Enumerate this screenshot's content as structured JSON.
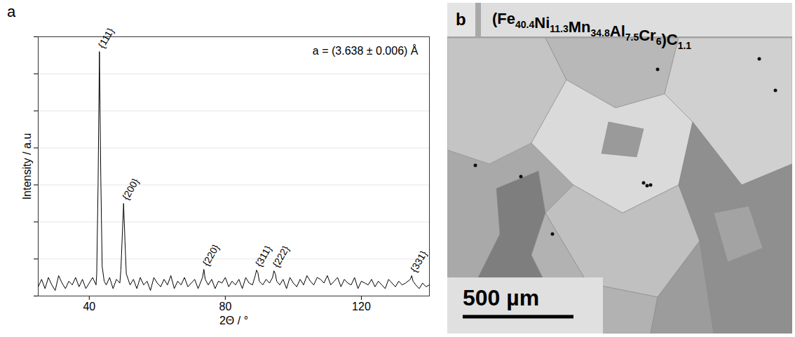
{
  "chart_data": {
    "type": "line",
    "panel_label": "a",
    "x_label": "2Θ / °",
    "y_label": "Intensity / a.u",
    "annotation": "a = (3.638 ± 0.006) Å",
    "color": "#000000",
    "grid": true,
    "tick_labels": "x",
    "xlim": [
      25,
      140
    ],
    "xticks": [
      40,
      80,
      120
    ],
    "ylim": [
      0,
      7
    ],
    "yticks": [
      0,
      1,
      2,
      3,
      4,
      5,
      6,
      7
    ],
    "x": [
      25,
      26,
      27,
      28,
      29,
      30,
      31,
      32,
      33,
      34,
      35,
      36,
      37,
      38,
      39,
      40,
      41,
      42,
      42.2,
      42.6,
      43.0,
      43.4,
      43.8,
      44.4,
      45,
      46,
      47,
      48,
      49,
      49.3,
      49.7,
      50.1,
      50.5,
      50.9,
      52,
      53,
      54,
      55,
      56,
      57,
      58,
      59,
      60,
      61,
      62,
      63,
      64,
      65,
      66,
      67,
      68,
      69,
      70,
      71,
      72,
      73.3,
      73.7,
      74.1,
      75,
      76,
      77,
      78,
      79,
      80,
      81,
      82,
      83,
      84,
      85,
      86,
      87,
      88,
      88.8,
      89.2,
      89.6,
      90.0,
      91,
      92,
      93,
      93.9,
      94.3,
      94.7,
      95.1,
      96,
      97,
      98,
      99,
      100,
      101,
      102,
      103,
      104,
      105,
      106,
      107,
      108,
      109,
      110,
      111,
      112,
      113,
      114,
      115,
      116,
      117,
      118,
      119,
      120,
      121,
      122,
      123,
      124,
      125,
      126,
      127,
      128,
      129,
      130,
      131,
      132,
      133,
      134.4,
      134.8,
      135.2,
      136,
      137,
      138,
      139,
      140
    ],
    "values": [
      0.25,
      0.45,
      0.2,
      0.5,
      0.3,
      0.15,
      0.55,
      0.35,
      0.2,
      0.4,
      0.3,
      0.5,
      0.25,
      0.45,
      0.2,
      0.35,
      0.5,
      0.3,
      0.6,
      3.0,
      6.6,
      3.2,
      0.8,
      0.4,
      0.3,
      0.5,
      0.2,
      0.45,
      0.35,
      0.7,
      1.6,
      2.5,
      1.5,
      0.6,
      0.3,
      0.45,
      0.2,
      0.5,
      0.3,
      0.4,
      0.15,
      0.5,
      0.35,
      0.25,
      0.45,
      0.3,
      0.55,
      0.2,
      0.4,
      0.3,
      0.5,
      0.25,
      0.35,
      0.45,
      0.2,
      0.5,
      0.72,
      0.45,
      0.3,
      0.45,
      0.2,
      0.4,
      0.35,
      0.5,
      0.25,
      0.4,
      0.3,
      0.45,
      0.2,
      0.5,
      0.35,
      0.3,
      0.55,
      0.7,
      0.62,
      0.4,
      0.3,
      0.45,
      0.35,
      0.5,
      0.68,
      0.6,
      0.4,
      0.3,
      0.45,
      0.2,
      0.5,
      0.35,
      0.25,
      0.45,
      0.3,
      0.55,
      0.4,
      0.3,
      0.5,
      0.45,
      0.35,
      0.55,
      0.3,
      0.4,
      0.5,
      0.25,
      0.45,
      0.35,
      0.3,
      0.5,
      0.2,
      0.4,
      0.35,
      0.3,
      0.45,
      0.25,
      0.4,
      0.3,
      0.2,
      0.45,
      0.35,
      0.25,
      0.4,
      0.3,
      0.35,
      0.45,
      0.55,
      0.4,
      0.3,
      0.2,
      0.35,
      0.25,
      0.3
    ],
    "peak_labels": [
      {
        "text": "{111}",
        "x": 43.0,
        "y": 6.6
      },
      {
        "text": "{200}",
        "x": 50.1,
        "y": 2.5
      },
      {
        "text": "{220}",
        "x": 73.7,
        "y": 0.72
      },
      {
        "text": "{311}",
        "x": 89.2,
        "y": 0.7
      },
      {
        "text": "{222}",
        "x": 94.3,
        "y": 0.68
      },
      {
        "text": "{331}",
        "x": 134.8,
        "y": 0.55
      }
    ]
  },
  "image_panel": {
    "panel_label": "b",
    "title_parts": [
      {
        "text": "(Fe"
      },
      {
        "sub": "40.4"
      },
      {
        "text": "Ni"
      },
      {
        "sub": "11.3"
      },
      {
        "text": "Mn"
      },
      {
        "sub": "34.8"
      },
      {
        "text": "Al"
      },
      {
        "sub": "7.5"
      },
      {
        "text": "Cr"
      },
      {
        "sub": "6"
      },
      {
        "text": ")C"
      },
      {
        "sub": "1.1"
      }
    ],
    "scale_bar": "500 µm"
  }
}
